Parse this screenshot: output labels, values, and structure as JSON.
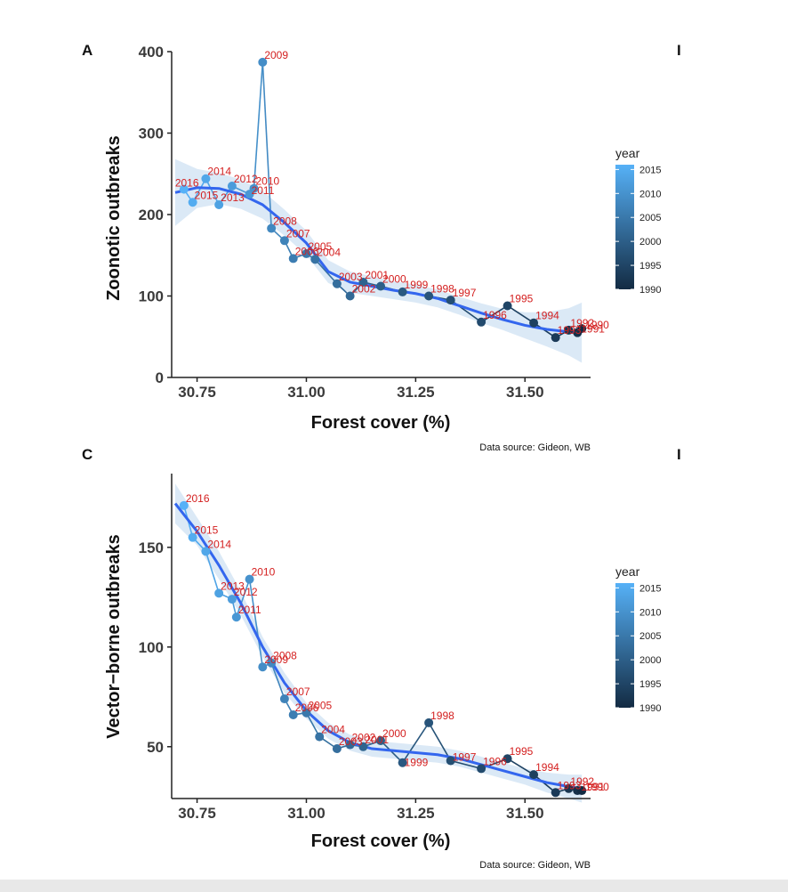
{
  "chart_data": [
    {
      "panel": "A",
      "type": "scatter",
      "xlabel": "Forest cover (%)",
      "ylabel": "Zoonotic outbreaks",
      "xlim": [
        30.7,
        31.65
      ],
      "ylim": [
        0,
        400
      ],
      "xticks": [
        30.75,
        31.0,
        31.25,
        31.5
      ],
      "xtick_labels": [
        "30.75",
        "31.00",
        "31.25",
        "31.50"
      ],
      "yticks": [
        0,
        100,
        200,
        300,
        400
      ],
      "ytick_labels": [
        "0",
        "100",
        "200",
        "300",
        "400"
      ],
      "source": "Data source: Gideon, WB",
      "smooth": "loess with confidence band",
      "points": [
        {
          "year": 2016,
          "x": 30.72,
          "y": 231,
          "label": "2016",
          "lx": -12,
          "ly": -3
        },
        {
          "year": 2015,
          "x": 30.74,
          "y": 215,
          "label": "2015",
          "lx": 0,
          "ly": -4
        },
        {
          "year": 2014,
          "x": 30.77,
          "y": 244,
          "label": "2014",
          "lx": 0,
          "ly": -4
        },
        {
          "year": 2013,
          "x": 30.8,
          "y": 212,
          "label": "2013",
          "lx": 0,
          "ly": -4
        },
        {
          "year": 2012,
          "x": 30.83,
          "y": 235,
          "label": "2012",
          "lx": 0,
          "ly": -4
        },
        {
          "year": 2011,
          "x": 30.87,
          "y": 225,
          "label": "2011",
          "lx": 0,
          "ly": 0
        },
        {
          "year": 2010,
          "x": 30.88,
          "y": 232,
          "label": "2010",
          "lx": 0,
          "ly": -4
        },
        {
          "year": 2009,
          "x": 30.9,
          "y": 387,
          "label": "2009",
          "lx": 0,
          "ly": -4
        },
        {
          "year": 2008,
          "x": 30.92,
          "y": 183,
          "label": "2008",
          "lx": 0,
          "ly": -4
        },
        {
          "year": 2007,
          "x": 30.95,
          "y": 168,
          "label": "2007",
          "lx": 0,
          "ly": -4
        },
        {
          "year": 2006,
          "x": 30.97,
          "y": 146,
          "label": "2006",
          "lx": 0,
          "ly": -4
        },
        {
          "year": 2005,
          "x": 31.0,
          "y": 152,
          "label": "2005",
          "lx": 0,
          "ly": -4
        },
        {
          "year": 2004,
          "x": 31.02,
          "y": 145,
          "label": "2004",
          "lx": 0,
          "ly": -4
        },
        {
          "year": 2003,
          "x": 31.07,
          "y": 115,
          "label": "2003",
          "lx": 0,
          "ly": -4
        },
        {
          "year": 2002,
          "x": 31.1,
          "y": 100,
          "label": "2002",
          "lx": 0,
          "ly": -4
        },
        {
          "year": 2001,
          "x": 31.13,
          "y": 117,
          "label": "2001",
          "lx": 0,
          "ly": -4
        },
        {
          "year": 2000,
          "x": 31.17,
          "y": 112,
          "label": "2000",
          "lx": 0,
          "ly": -4
        },
        {
          "year": 1999,
          "x": 31.22,
          "y": 105,
          "label": "1999",
          "lx": 0,
          "ly": -4
        },
        {
          "year": 1998,
          "x": 31.28,
          "y": 100,
          "label": "1998",
          "lx": 0,
          "ly": -4
        },
        {
          "year": 1997,
          "x": 31.33,
          "y": 95,
          "label": "1997",
          "lx": 0,
          "ly": -4
        },
        {
          "year": 1996,
          "x": 31.4,
          "y": 68,
          "label": "1996",
          "lx": 0,
          "ly": -4
        },
        {
          "year": 1995,
          "x": 31.46,
          "y": 88,
          "label": "1995",
          "lx": 0,
          "ly": -4
        },
        {
          "year": 1994,
          "x": 31.52,
          "y": 67,
          "label": "1994",
          "lx": 0,
          "ly": -4
        },
        {
          "year": 1993,
          "x": 31.57,
          "y": 49,
          "label": "1993",
          "lx": 0,
          "ly": -4
        },
        {
          "year": 1992,
          "x": 31.6,
          "y": 58,
          "label": "1992",
          "lx": 0,
          "ly": -4
        },
        {
          "year": 1991,
          "x": 31.62,
          "y": 55,
          "label": "1991",
          "lx": 2,
          "ly": 0
        },
        {
          "year": 1990,
          "x": 31.63,
          "y": 60,
          "label": "1990",
          "lx": 2,
          "ly": 0
        }
      ],
      "fit": [
        [
          30.7,
          227
        ],
        [
          30.75,
          233
        ],
        [
          30.8,
          232
        ],
        [
          30.85,
          225
        ],
        [
          30.9,
          212
        ],
        [
          30.95,
          190
        ],
        [
          31.0,
          165
        ],
        [
          31.05,
          130
        ],
        [
          31.1,
          117
        ],
        [
          31.15,
          112
        ],
        [
          31.2,
          107
        ],
        [
          31.25,
          103
        ],
        [
          31.3,
          97
        ],
        [
          31.35,
          88
        ],
        [
          31.4,
          79
        ],
        [
          31.45,
          71
        ],
        [
          31.5,
          64
        ],
        [
          31.55,
          59
        ],
        [
          31.6,
          56
        ],
        [
          31.63,
          55
        ]
      ],
      "band": [
        [
          30.7,
          186,
          268
        ],
        [
          30.75,
          208,
          256
        ],
        [
          30.8,
          213,
          251
        ],
        [
          30.85,
          207,
          243
        ],
        [
          30.9,
          195,
          229
        ],
        [
          30.95,
          174,
          206
        ],
        [
          31.0,
          150,
          180
        ],
        [
          31.05,
          116,
          144
        ],
        [
          31.1,
          104,
          130
        ],
        [
          31.15,
          100,
          124
        ],
        [
          31.2,
          96,
          118
        ],
        [
          31.25,
          92,
          114
        ],
        [
          31.3,
          86,
          108
        ],
        [
          31.35,
          77,
          99
        ],
        [
          31.4,
          67,
          91
        ],
        [
          31.45,
          58,
          84
        ],
        [
          31.5,
          48,
          80
        ],
        [
          31.55,
          38,
          80
        ],
        [
          31.6,
          27,
          85
        ],
        [
          31.63,
          18,
          92
        ]
      ]
    },
    {
      "panel": "C",
      "type": "scatter",
      "xlabel": "Forest cover (%)",
      "ylabel": "Vector−borne outbreaks",
      "xlim": [
        30.7,
        31.65
      ],
      "ylim": [
        24,
        187
      ],
      "xticks": [
        30.75,
        31.0,
        31.25,
        31.5
      ],
      "xtick_labels": [
        "30.75",
        "31.00",
        "31.25",
        "31.50"
      ],
      "yticks": [
        50,
        100,
        150
      ],
      "ytick_labels": [
        "50",
        "100",
        "150"
      ],
      "source": "Data source: Gideon, WB",
      "smooth": "loess with confidence band",
      "points": [
        {
          "year": 2016,
          "x": 30.72,
          "y": 171,
          "label": "2016",
          "lx": 0,
          "ly": -4
        },
        {
          "year": 2015,
          "x": 30.74,
          "y": 155,
          "label": "2015",
          "lx": 0,
          "ly": -4
        },
        {
          "year": 2014,
          "x": 30.77,
          "y": 148,
          "label": "2014",
          "lx": 0,
          "ly": -4
        },
        {
          "year": 2013,
          "x": 30.8,
          "y": 127,
          "label": "2013",
          "lx": 0,
          "ly": -4
        },
        {
          "year": 2012,
          "x": 30.83,
          "y": 124,
          "label": "2012",
          "lx": 0,
          "ly": -4
        },
        {
          "year": 2011,
          "x": 30.84,
          "y": 115,
          "label": "2011",
          "lx": 0,
          "ly": -4
        },
        {
          "year": 2010,
          "x": 30.87,
          "y": 134,
          "label": "2010",
          "lx": 0,
          "ly": -4
        },
        {
          "year": 2009,
          "x": 30.9,
          "y": 90,
          "label": "2009",
          "lx": 0,
          "ly": -4
        },
        {
          "year": 2008,
          "x": 30.92,
          "y": 92,
          "label": "2008",
          "lx": 0,
          "ly": -4
        },
        {
          "year": 2007,
          "x": 30.95,
          "y": 74,
          "label": "2007",
          "lx": 0,
          "ly": -4
        },
        {
          "year": 2006,
          "x": 30.97,
          "y": 66,
          "label": "2006",
          "lx": 0,
          "ly": -4
        },
        {
          "year": 2005,
          "x": 31.0,
          "y": 67,
          "label": "2005",
          "lx": 0,
          "ly": -4
        },
        {
          "year": 2004,
          "x": 31.03,
          "y": 55,
          "label": "2004",
          "lx": 0,
          "ly": -4
        },
        {
          "year": 2003,
          "x": 31.07,
          "y": 49,
          "label": "2003",
          "lx": 0,
          "ly": -4
        },
        {
          "year": 2002,
          "x": 31.1,
          "y": 51,
          "label": "2002",
          "lx": 0,
          "ly": -4
        },
        {
          "year": 2001,
          "x": 31.13,
          "y": 50,
          "label": "2001",
          "lx": 0,
          "ly": -4
        },
        {
          "year": 2000,
          "x": 31.17,
          "y": 53,
          "label": "2000",
          "lx": 0,
          "ly": -4
        },
        {
          "year": 1999,
          "x": 31.22,
          "y": 42,
          "label": "1999",
          "lx": 0,
          "ly": 4
        },
        {
          "year": 1998,
          "x": 31.28,
          "y": 62,
          "label": "1998",
          "lx": 0,
          "ly": -4
        },
        {
          "year": 1997,
          "x": 31.33,
          "y": 43,
          "label": "1997",
          "lx": 0,
          "ly": 0
        },
        {
          "year": 1996,
          "x": 31.4,
          "y": 39,
          "label": "1996",
          "lx": 0,
          "ly": -4
        },
        {
          "year": 1995,
          "x": 31.46,
          "y": 44,
          "label": "1995",
          "lx": 0,
          "ly": -4
        },
        {
          "year": 1994,
          "x": 31.52,
          "y": 36,
          "label": "1994",
          "lx": 0,
          "ly": -4
        },
        {
          "year": 1993,
          "x": 31.57,
          "y": 27,
          "label": "1993",
          "lx": 0,
          "ly": -4
        },
        {
          "year": 1992,
          "x": 31.6,
          "y": 29,
          "label": "1992",
          "lx": 0,
          "ly": -4
        },
        {
          "year": 1991,
          "x": 31.62,
          "y": 28,
          "label": "1991",
          "lx": 2,
          "ly": 0
        },
        {
          "year": 1990,
          "x": 31.63,
          "y": 28,
          "label": "1990",
          "lx": 2,
          "ly": 0
        }
      ],
      "fit": [
        [
          30.7,
          172
        ],
        [
          30.75,
          158
        ],
        [
          30.8,
          141
        ],
        [
          30.85,
          122
        ],
        [
          30.9,
          100
        ],
        [
          30.95,
          82
        ],
        [
          31.0,
          68
        ],
        [
          31.05,
          58
        ],
        [
          31.1,
          52
        ],
        [
          31.15,
          49
        ],
        [
          31.2,
          48
        ],
        [
          31.25,
          47
        ],
        [
          31.3,
          46
        ],
        [
          31.35,
          44
        ],
        [
          31.4,
          41
        ],
        [
          31.45,
          38
        ],
        [
          31.5,
          35
        ],
        [
          31.55,
          32
        ],
        [
          31.6,
          30
        ],
        [
          31.63,
          29
        ]
      ],
      "band": [
        [
          30.7,
          162,
          182
        ],
        [
          30.75,
          151,
          165
        ],
        [
          30.8,
          134,
          148
        ],
        [
          30.85,
          116,
          128
        ],
        [
          30.9,
          95,
          105
        ],
        [
          30.95,
          77,
          87
        ],
        [
          31.0,
          64,
          72
        ],
        [
          31.05,
          54,
          62
        ],
        [
          31.1,
          48,
          56
        ],
        [
          31.15,
          45,
          53
        ],
        [
          31.2,
          44,
          52
        ],
        [
          31.25,
          43,
          51
        ],
        [
          31.3,
          42,
          50
        ],
        [
          31.35,
          40,
          48
        ],
        [
          31.4,
          37,
          45
        ],
        [
          31.45,
          34,
          42
        ],
        [
          31.5,
          31,
          39
        ],
        [
          31.55,
          27,
          37
        ],
        [
          31.6,
          24,
          36
        ],
        [
          31.63,
          22,
          36
        ]
      ]
    }
  ],
  "legend": {
    "title": "year",
    "ticks": [
      "2015",
      "2010",
      "2005",
      "2000",
      "1995",
      "1990"
    ],
    "tick_values": [
      2015,
      2010,
      2005,
      2000,
      1995,
      1990
    ],
    "range": [
      1990,
      2016
    ],
    "color_low": "#132b43",
    "color_high": "#56b1f7"
  },
  "colors": {
    "fit_line": "#3366ee",
    "band": "#d5e5f5",
    "point_label": "#d42020",
    "axis": "#222222"
  }
}
